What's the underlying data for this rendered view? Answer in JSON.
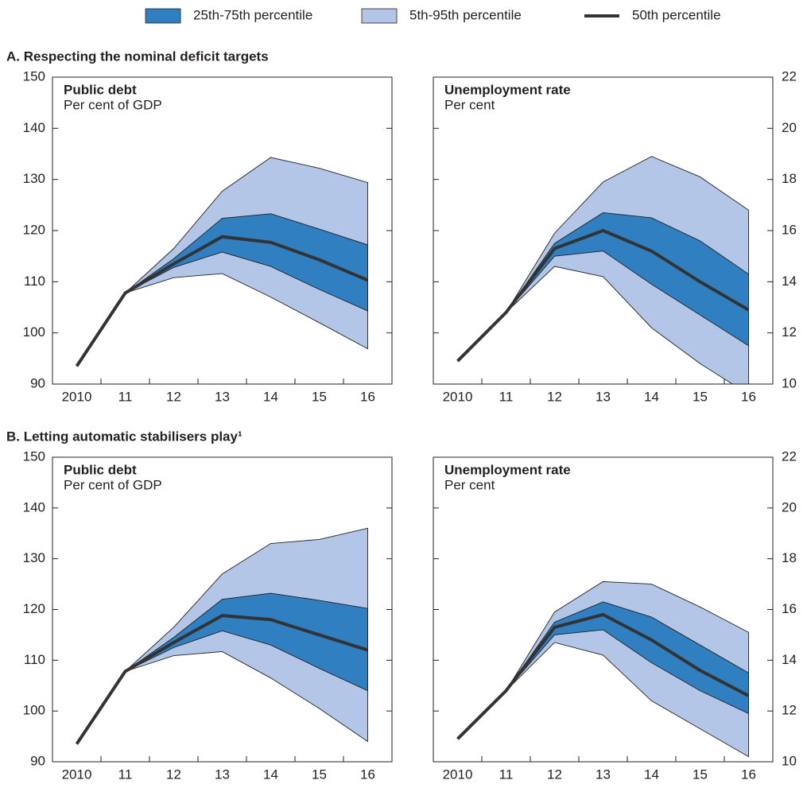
{
  "sections": [
    {
      "title": "A. Respecting the nominal deficit targets"
    },
    {
      "title": "B. Letting automatic stabilisers play¹"
    }
  ],
  "chart_data": [
    {
      "type": "fan",
      "section": 0,
      "title": "Public debt",
      "subtitle": "Per cent of GDP",
      "yaxis_side": "left",
      "categories": [
        "2010",
        "11",
        "12",
        "13",
        "14",
        "15",
        "16"
      ],
      "ylim": [
        90,
        150
      ],
      "yticks": [
        90,
        100,
        110,
        120,
        130,
        140,
        150
      ],
      "series": [
        {
          "name": "25th-75th percentile",
          "color": "#2f7fc1",
          "low": [
            null,
            107.8,
            112.8,
            115.8,
            113.0,
            108.5,
            104.3
          ],
          "high": [
            null,
            107.8,
            114.5,
            122.4,
            123.3,
            120.3,
            117.2
          ]
        },
        {
          "name": "5th-95th percentile",
          "color": "#b3c6e7",
          "low": [
            null,
            107.8,
            110.8,
            111.6,
            107.0,
            102.0,
            96.9
          ],
          "high": [
            null,
            107.8,
            116.5,
            127.7,
            134.3,
            132.2,
            129.4
          ]
        },
        {
          "name": "50th percentile",
          "color": "#333333",
          "values": [
            93.5,
            107.8,
            113.5,
            118.8,
            117.7,
            114.3,
            110.3
          ]
        }
      ]
    },
    {
      "type": "fan",
      "section": 0,
      "title": "Unemployment rate",
      "subtitle": "Per cent",
      "yaxis_side": "right",
      "categories": [
        "2010",
        "11",
        "12",
        "13",
        "14",
        "15",
        "16"
      ],
      "ylim": [
        10,
        22
      ],
      "yticks": [
        10,
        12,
        14,
        16,
        18,
        20,
        22
      ],
      "series": [
        {
          "name": "25th-75th percentile",
          "color": "#2f7fc1",
          "low": [
            null,
            12.8,
            15.0,
            15.2,
            13.9,
            12.7,
            11.5
          ],
          "high": [
            null,
            12.8,
            15.5,
            16.7,
            16.5,
            15.6,
            14.3
          ]
        },
        {
          "name": "5th-95th percentile",
          "color": "#b3c6e7",
          "low": [
            null,
            12.8,
            14.6,
            14.2,
            12.2,
            10.8,
            9.6
          ],
          "high": [
            null,
            12.8,
            15.9,
            17.9,
            18.9,
            18.1,
            16.8
          ]
        },
        {
          "name": "50th percentile",
          "color": "#333333",
          "values": [
            10.9,
            12.8,
            15.3,
            16.0,
            15.2,
            14.0,
            12.9
          ]
        }
      ]
    },
    {
      "type": "fan",
      "section": 1,
      "title": "Public debt",
      "subtitle": "Per cent of GDP",
      "yaxis_side": "left",
      "categories": [
        "2010",
        "11",
        "12",
        "13",
        "14",
        "15",
        "16"
      ],
      "ylim": [
        90,
        150
      ],
      "yticks": [
        90,
        100,
        110,
        120,
        130,
        140,
        150
      ],
      "series": [
        {
          "name": "25th-75th percentile",
          "color": "#2f7fc1",
          "low": [
            null,
            107.8,
            112.5,
            115.8,
            113.0,
            108.4,
            104.0
          ],
          "high": [
            null,
            107.8,
            114.5,
            122.0,
            123.2,
            121.8,
            120.2
          ]
        },
        {
          "name": "5th-95th percentile",
          "color": "#b3c6e7",
          "low": [
            null,
            107.8,
            110.9,
            111.7,
            106.5,
            100.5,
            94.0
          ],
          "high": [
            null,
            107.8,
            116.5,
            127.0,
            133.0,
            133.8,
            136.0
          ]
        },
        {
          "name": "50th percentile",
          "color": "#333333",
          "values": [
            93.5,
            107.8,
            113.5,
            118.8,
            118.0,
            115.0,
            112.0
          ]
        }
      ]
    },
    {
      "type": "fan",
      "section": 1,
      "title": "Unemployment rate",
      "subtitle": "Per cent",
      "yaxis_side": "right",
      "categories": [
        "2010",
        "11",
        "12",
        "13",
        "14",
        "15",
        "16"
      ],
      "ylim": [
        10,
        22
      ],
      "yticks": [
        10,
        12,
        14,
        16,
        18,
        20,
        22
      ],
      "series": [
        {
          "name": "25th-75th percentile",
          "color": "#2f7fc1",
          "low": [
            null,
            12.8,
            15.0,
            15.2,
            13.9,
            12.8,
            11.9
          ],
          "high": [
            null,
            12.8,
            15.5,
            16.3,
            15.7,
            14.6,
            13.5
          ]
        },
        {
          "name": "5th-95th percentile",
          "color": "#b3c6e7",
          "low": [
            null,
            12.8,
            14.7,
            14.2,
            12.4,
            11.3,
            10.2
          ],
          "high": [
            null,
            12.8,
            15.9,
            17.1,
            17.0,
            16.1,
            15.1
          ]
        },
        {
          "name": "50th percentile",
          "color": "#333333",
          "values": [
            10.9,
            12.8,
            15.3,
            15.8,
            14.8,
            13.6,
            12.6
          ]
        }
      ]
    }
  ]
}
